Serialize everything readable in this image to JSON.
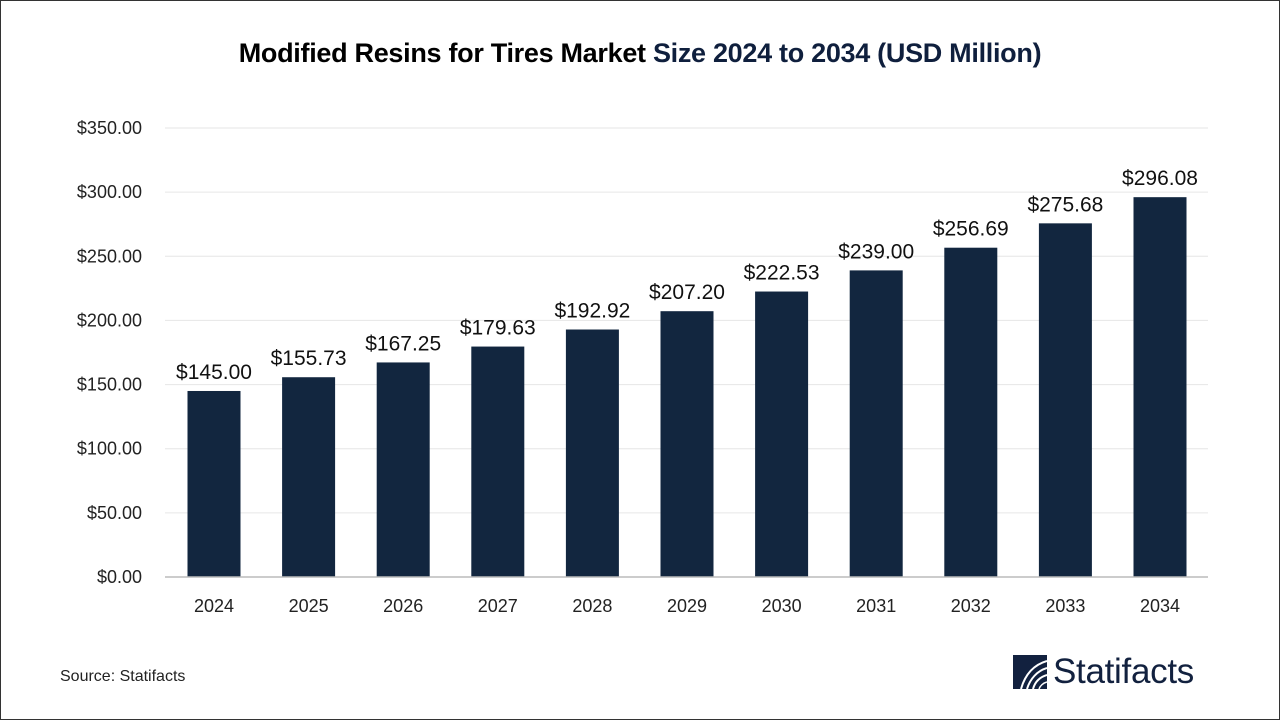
{
  "chart_data": {
    "type": "bar",
    "title_part1": "Modified Resins for Tires Market ",
    "title_part2": "Size 2024 to 2034 (USD Million)",
    "categories": [
      "2024",
      "2025",
      "2026",
      "2027",
      "2028",
      "2029",
      "2030",
      "2031",
      "2032",
      "2033",
      "2034"
    ],
    "values": [
      145.0,
      155.73,
      167.25,
      179.63,
      192.92,
      207.2,
      222.53,
      239.0,
      256.69,
      275.68,
      296.08
    ],
    "data_labels": [
      "$145.00",
      "$155.73",
      "$167.25",
      "$179.63",
      "$192.92",
      "$207.20",
      "$222.53",
      "$239.00",
      "$256.69",
      "$275.68",
      "$296.08"
    ],
    "y_ticks": [
      0,
      50,
      100,
      150,
      200,
      250,
      300,
      350
    ],
    "y_tick_labels": [
      "$0.00",
      "$50.00",
      "$100.00",
      "$150.00",
      "$200.00",
      "$250.00",
      "$300.00",
      "$350.00"
    ],
    "ylim": [
      0,
      350
    ],
    "xlabel": "",
    "ylabel": "",
    "grid": true,
    "bar_color": "#12263f"
  },
  "source": "Source: Statifacts",
  "logo": {
    "text": "Statifacts",
    "color": "#12213f"
  }
}
